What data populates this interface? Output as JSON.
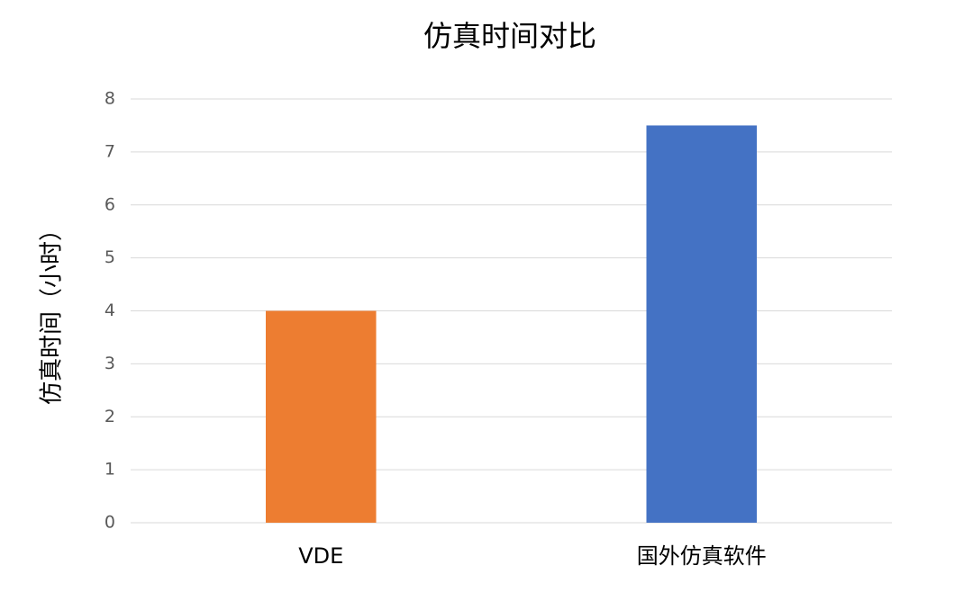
{
  "chart_data": {
    "type": "bar",
    "title": "仿真时间对比",
    "y_label": "仿真时间（小时）",
    "categories": [
      "VDE",
      "国外仿真软件"
    ],
    "values": [
      4,
      7.5
    ],
    "colors": [
      "#ed7d31",
      "#4472c4"
    ],
    "ylim": [
      0,
      8
    ],
    "yticks": [
      0,
      1,
      2,
      3,
      4,
      5,
      6,
      7,
      8
    ],
    "grid": true
  }
}
